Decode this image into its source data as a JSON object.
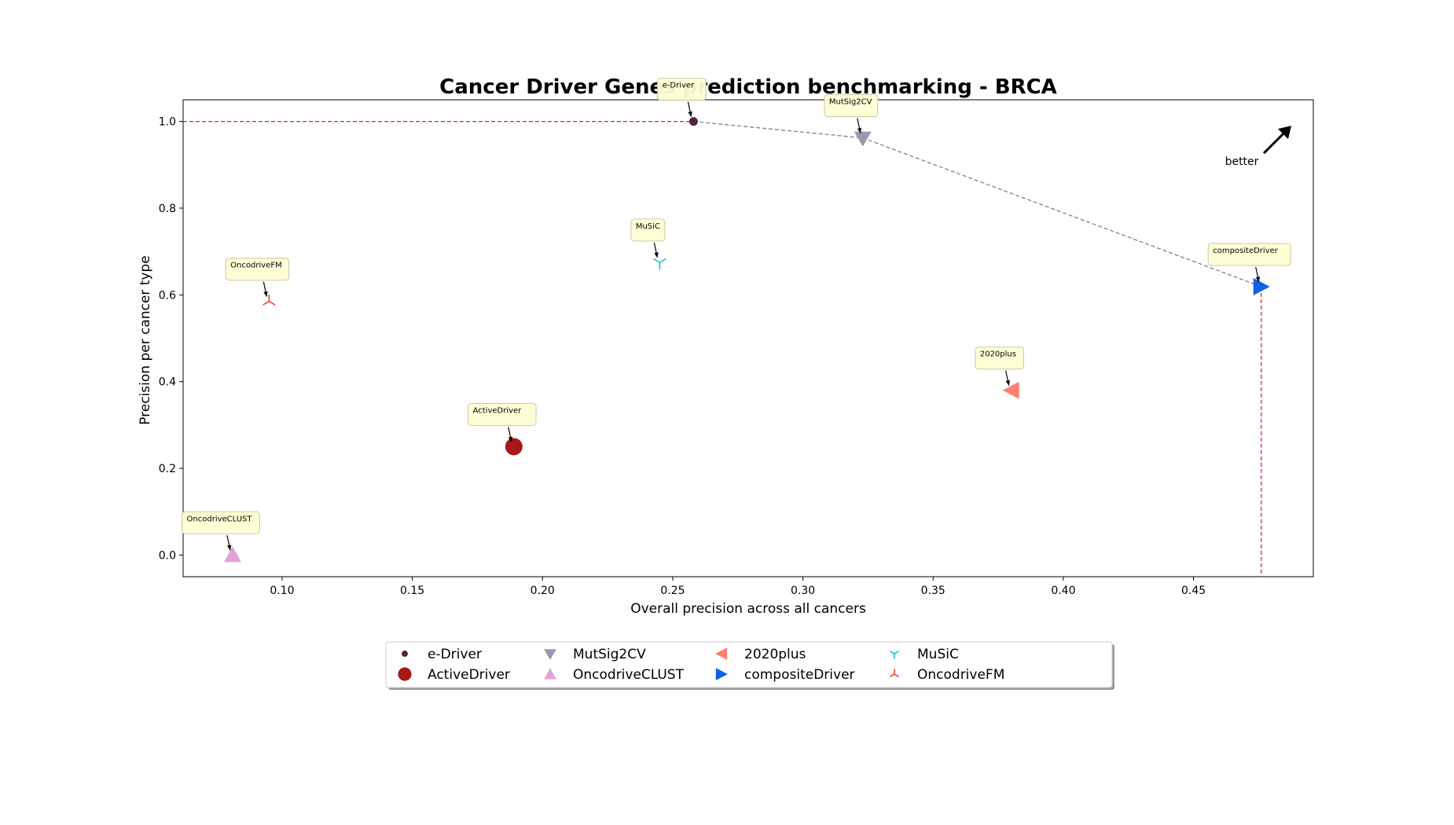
{
  "chart_data": {
    "type": "scatter",
    "title": "Cancer Driver Genes prediction benchmarking - BRCA",
    "xlabel": "Overall precision across all cancers",
    "ylabel": "Precision per cancer type",
    "xlim": [
      0.062,
      0.496
    ],
    "ylim": [
      -0.05,
      1.05
    ],
    "xticks": [
      0.1,
      0.15,
      0.2,
      0.25,
      0.3,
      0.35,
      0.4,
      0.45
    ],
    "xtick_labels": [
      "0.10",
      "0.15",
      "0.20",
      "0.25",
      "0.30",
      "0.35",
      "0.40",
      "0.45"
    ],
    "yticks": [
      0.0,
      0.2,
      0.4,
      0.6,
      0.8,
      1.0
    ],
    "ytick_labels": [
      "0.0",
      "0.2",
      "0.4",
      "0.6",
      "0.8",
      "1.0"
    ],
    "grid": false,
    "legend_position": "bottom-center",
    "series": [
      {
        "name": "e-Driver",
        "x": 0.258,
        "y": 1.0,
        "marker": "circle-small",
        "color": "#5a2045",
        "annotation": "e-Driver"
      },
      {
        "name": "ActiveDriver",
        "x": 0.189,
        "y": 0.25,
        "marker": "circle",
        "color": "#a81818",
        "annotation": "ActiveDriver"
      },
      {
        "name": "MutSig2CV",
        "x": 0.323,
        "y": 0.962,
        "marker": "triangle-down",
        "color": "#9c96b4",
        "annotation": "MutSig2CV"
      },
      {
        "name": "OncodriveCLUST",
        "x": 0.081,
        "y": 0.0,
        "marker": "triangle-up",
        "color": "#e2a2d6",
        "annotation": "OncodriveCLUST"
      },
      {
        "name": "2020plus",
        "x": 0.38,
        "y": 0.38,
        "marker": "triangle-left",
        "color": "#fa8070",
        "annotation": "2020plus"
      },
      {
        "name": "compositeDriver",
        "x": 0.476,
        "y": 0.619,
        "marker": "triangle-right",
        "color": "#1060e8",
        "annotation": "compositeDriver"
      },
      {
        "name": "MuSiC",
        "x": 0.245,
        "y": 0.675,
        "marker": "tri-down",
        "color": "#20c0c8",
        "annotation": "MuSiC"
      },
      {
        "name": "OncodriveFM",
        "x": 0.095,
        "y": 0.585,
        "marker": "tri-up",
        "color": "#e04a20",
        "annotation": "OncodriveFM"
      }
    ],
    "pareto_front": {
      "x": [
        0.258,
        0.323,
        0.476
      ],
      "y": [
        1.0,
        0.962,
        0.619
      ],
      "color": "#808080",
      "style": "dashed"
    },
    "reference_lines": [
      {
        "orientation": "horizontal",
        "y": 1.0,
        "x_to": 0.258,
        "color": "#e8202a",
        "style": "dashed"
      },
      {
        "orientation": "vertical",
        "x": 0.476,
        "y_to": 0.619,
        "color": "#e8202a",
        "style": "dashed"
      }
    ],
    "better_annotation": {
      "text": "better"
    }
  }
}
